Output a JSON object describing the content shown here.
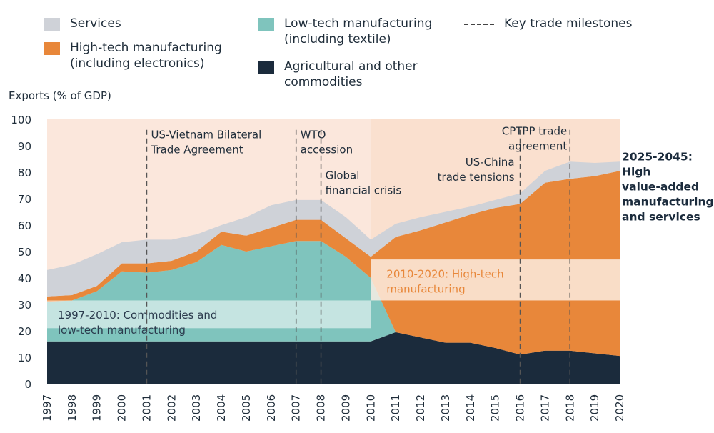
{
  "legend": {
    "services": "Services",
    "hightech_l1": "High-tech manufacturing",
    "hightech_l2": "(including electronics)",
    "lowtech_l1": "Low-tech manufacturing",
    "lowtech_l2": "(including textile)",
    "agri_l1": "Agricultural and other",
    "agri_l2": "commodities",
    "milestones": "Key trade milestones"
  },
  "colors": {
    "services": "#cfd2d8",
    "hightech": "#e8873a",
    "lowtech": "#7fc4bd",
    "agri": "#1b2b3c",
    "band1": "#fbe7dc",
    "band2": "#fae0cf",
    "band3": "#fdf0e6"
  },
  "chart_data": {
    "type": "area",
    "title": "",
    "ylabel": "Exports (% of GDP)",
    "ylim": [
      0,
      100
    ],
    "yticks": [
      0,
      10,
      20,
      30,
      40,
      50,
      60,
      70,
      80,
      90,
      100
    ],
    "x": [
      1997,
      1998,
      1999,
      2000,
      2001,
      2002,
      2003,
      2004,
      2005,
      2006,
      2007,
      2008,
      2009,
      2010,
      2011,
      2012,
      2013,
      2014,
      2015,
      2016,
      2017,
      2018,
      2019,
      2020
    ],
    "series": [
      {
        "name": "Agricultural and other commodities",
        "values": [
          16,
          16,
          16,
          16,
          16,
          16,
          16,
          16,
          16,
          16,
          16,
          16,
          16,
          16,
          19.5,
          17.5,
          15.5,
          15.5,
          13.5,
          11,
          12.5,
          12.5,
          11.5,
          10.5
        ]
      },
      {
        "name": "Low-tech manufacturing (including textile)",
        "values": [
          15,
          15.5,
          19,
          26.5,
          26,
          27,
          30,
          36.5,
          34,
          36,
          38,
          38,
          32,
          24,
          0,
          0,
          0,
          0,
          0,
          0,
          0,
          0,
          0,
          0
        ]
      },
      {
        "name": "High-tech manufacturing (including electronics)",
        "values": [
          2,
          2,
          2,
          3,
          3.5,
          3.5,
          4,
          5,
          6,
          7,
          8,
          8,
          7,
          8,
          36,
          40.5,
          45.5,
          48.5,
          53,
          57,
          63.5,
          65,
          67,
          70
        ]
      },
      {
        "name": "Services",
        "values": [
          10,
          11.5,
          12,
          8,
          9,
          8,
          6.5,
          2.5,
          7,
          8.5,
          7.5,
          7.5,
          8,
          6.5,
          5,
          5,
          4,
          3,
          3,
          4,
          4.5,
          6.5,
          5,
          3.5
        ]
      }
    ],
    "milestones": [
      {
        "year": 2001,
        "label_l1": "US-Vietnam Bilateral",
        "label_l2": "Trade Agreement"
      },
      {
        "year": 2007,
        "label_l1": "WTO",
        "label_l2": "accession"
      },
      {
        "year": 2008,
        "label_l1": "Global",
        "label_l2": "financial crisis"
      },
      {
        "year": 2016,
        "label_l1": "US-China",
        "label_l2": "trade tensions"
      },
      {
        "year": 2018,
        "label_l1": "CPTPP trade",
        "label_l2": "agreement"
      }
    ],
    "annotations": [
      {
        "label_l1": "1997-2010: Commodities and",
        "label_l2": "low-tech manufacturing"
      },
      {
        "label_l1": "2010-2020: High-tech",
        "label_l2": "manufacturing"
      },
      {
        "label_l1": "2025-2045:",
        "label_l2": "High",
        "label_l3": "value-added",
        "label_l4": "manufacturing",
        "label_l5": "and services"
      }
    ]
  }
}
